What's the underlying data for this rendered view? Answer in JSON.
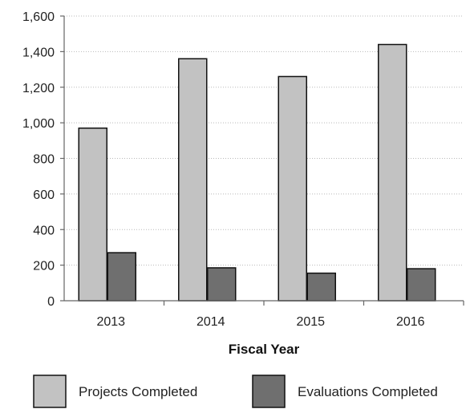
{
  "chart_data": {
    "type": "bar",
    "xlabel": "Fiscal Year",
    "categories": [
      "2013",
      "2014",
      "2015",
      "2016"
    ],
    "series": [
      {
        "name": "Projects Completed",
        "values": [
          970,
          1360,
          1260,
          1440
        ],
        "color": "#c2c2c2"
      },
      {
        "name": "Evaluations Completed",
        "values": [
          270,
          185,
          155,
          180
        ],
        "color": "#6f6f6f"
      }
    ],
    "ylim": [
      0,
      1600
    ],
    "yticks": [
      0,
      200,
      400,
      600,
      800,
      1000,
      1200,
      1400,
      1600
    ],
    "ytick_labels": [
      "0",
      "200",
      "400",
      "600",
      "800",
      "1,000",
      "1,200",
      "1,400",
      "1,600"
    ],
    "grid": true,
    "legend_position": "bottom"
  }
}
